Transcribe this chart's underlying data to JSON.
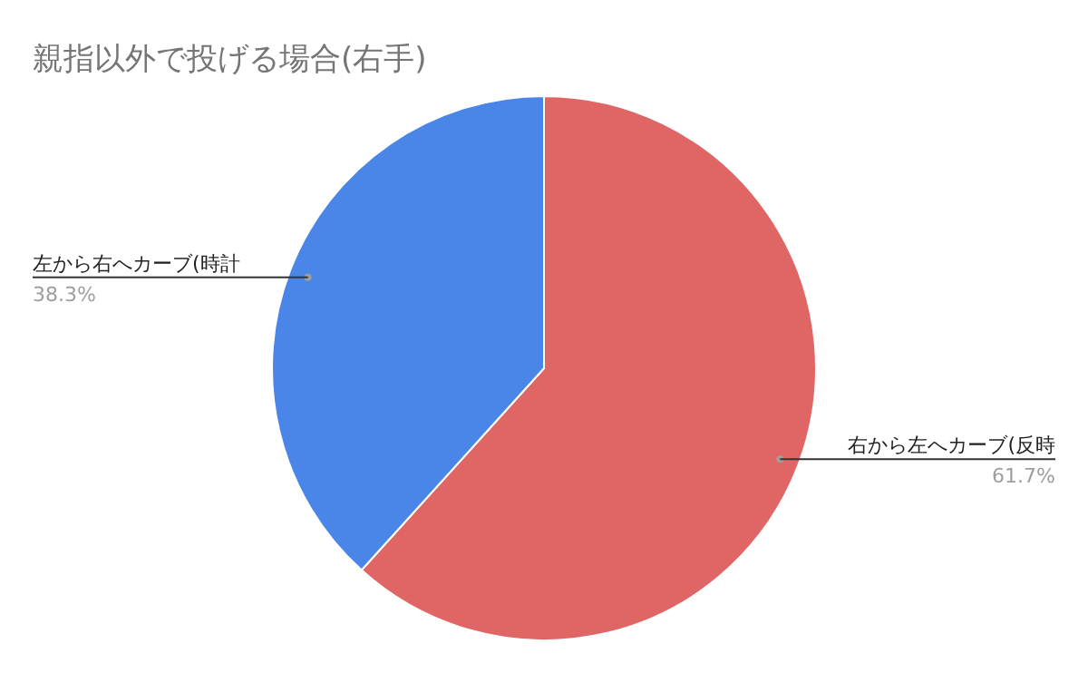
{
  "chart_data": {
    "type": "pie",
    "title": "親指以外で投げる場合(右手)",
    "categories": [
      "右から左へカーブ(反時",
      "左から右へカーブ(時計"
    ],
    "values": [
      61.7,
      38.3
    ],
    "value_labels": [
      "61.7%",
      "38.3%"
    ],
    "colors": [
      "#e06666",
      "#4a86e8"
    ]
  }
}
